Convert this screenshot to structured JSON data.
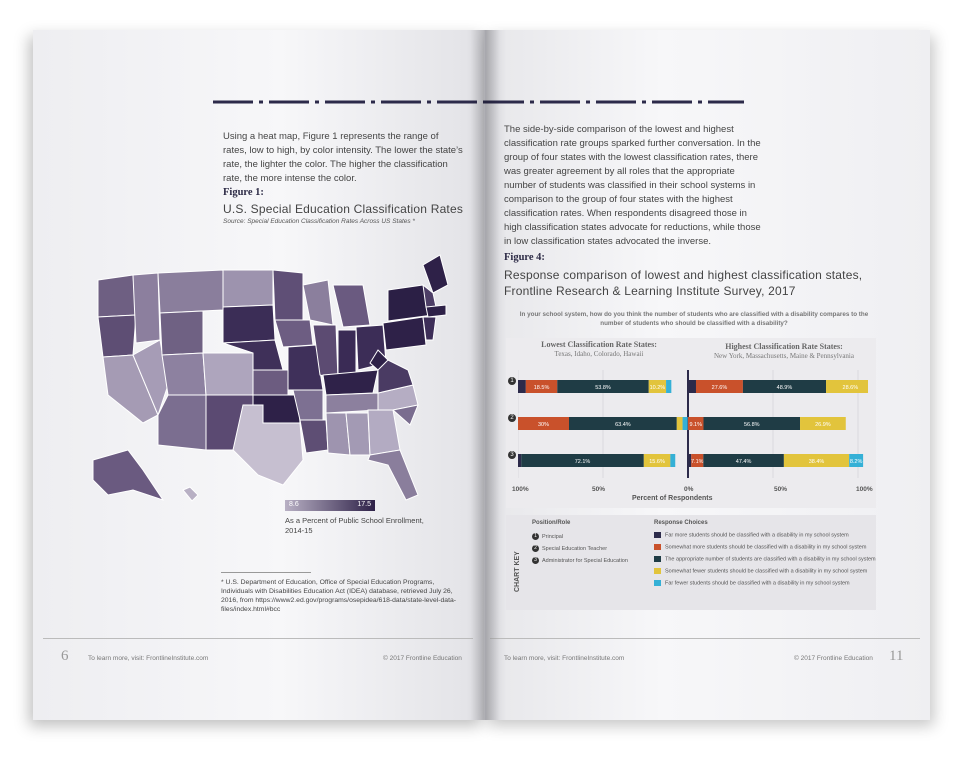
{
  "colors": {
    "navy": "#2c2a4a",
    "orange": "#c9512b",
    "teal": "#1f3c45",
    "yellow": "#e2c43c",
    "cyan": "#35b0d6",
    "purple_dark": "#2e2148",
    "purple_light": "#b8b0c4"
  },
  "left_page": {
    "intro": "Using a heat map, Figure 1 represents the range of rates, low to high, by color intensity. The lower the state’s rate, the lighter the color. The higher the classification rate, the more intense the color.",
    "figure_label": "Figure 1:",
    "figure_title": "U.S. Special Education Classification Rates",
    "figure_source": "Source: Special Education Classification Rates Across US States *",
    "legend_min": "8.6",
    "legend_max": "17.5",
    "legend_caption": "As a Percent of Public School Enrollment, 2014-15",
    "footnote": "* U.S. Department of Education, Office of Special Education Programs, Individuals with Disabilities Education Act (IDEA) database, retrieved July 26, 2016, from https://www2.ed.gov/programs/osepidea/618-data/state-level-data-files/index.html#bcc",
    "page_number": "6",
    "footer_link": "To learn more, visit: FrontlineInstitute.com",
    "copyright": "© 2017 Frontline Education"
  },
  "right_page": {
    "intro": "The side-by-side comparison of the lowest and highest classification rate groups sparked further conversation. In the group of four states with the lowest classification rates, there was greater agreement by all roles that the appropriate number of students was classified in their school systems in comparison to the group of four states with the highest classification rates. When respondents disagreed those in high classification states advocate for reductions, while those in low classification states advocated the inverse.",
    "figure_label": "Figure 4:",
    "figure_title_1": "Response comparison of lowest and highest classification states,",
    "figure_title_2": "Frontline Research & Learning Institute Survey, 2017",
    "question": "In your school system, how do you think the number of students who are classified with a disability compares to the number of students who should be classified with a disability?",
    "page_number": "11",
    "footer_link": "To learn more, visit: FrontlineInstitute.com",
    "copyright": "© 2017 Frontline Education",
    "key": {
      "title": "CHART KEY",
      "roles_head": "Position/Role",
      "roles": [
        "Principal",
        "Special Education Teacher",
        "Administrator for Special Education"
      ],
      "choices_head": "Response Choices",
      "choices": [
        "Far more students should be classified with a disability in my school system",
        "Somewhat more students should be classified with a disability in my school system",
        "The appropriate number of students are classified with a disability in my school system",
        "Somewhat fewer students should be classified with a disability in my school system",
        "Far fewer students should be classified with a disability in my school system"
      ]
    }
  },
  "chart_data": {
    "type": "bar",
    "orientation": "horizontal-diverging",
    "xlabel": "Percent of Respondents",
    "x_ticks": [
      "100%",
      "50%",
      "0%",
      "50%",
      "100%"
    ],
    "rows": [
      "1",
      "2",
      "3"
    ],
    "groups": [
      {
        "name": "Lowest Classification Rate States:",
        "states": "Texas, Idaho, Colorado, Hawaii",
        "values": [
          {
            "row": "1",
            "far_more": 4.6,
            "somewhat_more": 18.5,
            "appropriate": 53.8,
            "somewhat_fewer": 10.2,
            "far_fewer": 3.1
          },
          {
            "row": "2",
            "far_more": 0,
            "somewhat_more": 30.0,
            "appropriate": 63.4,
            "somewhat_fewer": 3.4,
            "far_fewer": 3.0
          },
          {
            "row": "3",
            "far_more": 1.9,
            "somewhat_more": 0,
            "appropriate": 72.1,
            "somewhat_fewer": 15.6,
            "far_fewer": 2.9
          }
        ]
      },
      {
        "name": "Highest Classification Rate States:",
        "states": "New York, Massachusetts, Maine & Pennsylvania",
        "values": [
          {
            "row": "1",
            "far_more": 4.7,
            "somewhat_more": 27.6,
            "appropriate": 48.9,
            "somewhat_fewer": 28.6,
            "far_fewer": 4.6
          },
          {
            "row": "2",
            "far_more": 0,
            "somewhat_more": 9.1,
            "appropriate": 56.8,
            "somewhat_fewer": 26.9,
            "far_fewer": 0
          },
          {
            "row": "3",
            "far_more": 1.9,
            "somewhat_more": 7.1,
            "appropriate": 47.4,
            "somewhat_fewer": 38.4,
            "far_fewer": 8.2
          }
        ]
      }
    ]
  }
}
